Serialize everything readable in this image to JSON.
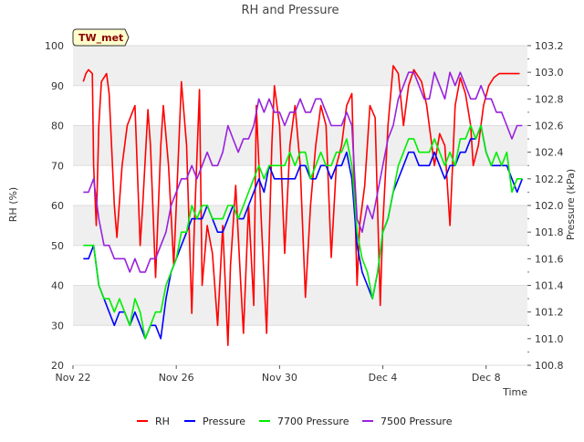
{
  "chart_data": {
    "type": "line",
    "title": "RH and Pressure",
    "xlabel": "Time",
    "ylabel": "RH (%)",
    "y2label": "Pressure (kPa)",
    "badge": "TW_met",
    "ylim": [
      20,
      100
    ],
    "y2lim": [
      100.8,
      103.2
    ],
    "xlim_days": [
      0,
      17.6
    ],
    "x_ticks": [
      "Nov 22",
      "Nov 26",
      "Nov 30",
      "Dec 4",
      "Dec 8"
    ],
    "x_tick_days": [
      0,
      4,
      8,
      12,
      16
    ],
    "y_ticks": [
      20,
      30,
      40,
      50,
      60,
      70,
      80,
      90,
      100
    ],
    "y2_ticks": [
      "100.8",
      "101.0",
      "101.2",
      "101.4",
      "101.6",
      "101.8",
      "102.0",
      "102.2",
      "102.4",
      "102.6",
      "102.8",
      "103.0",
      "103.2"
    ],
    "grid": true,
    "legend_position": "bottom",
    "series": [
      {
        "name": "RH",
        "color": "#ff0000",
        "axis": "left",
        "x": [
          0.4,
          0.5,
          0.6,
          0.75,
          0.8,
          0.9,
          1.0,
          1.1,
          1.3,
          1.4,
          1.6,
          1.7,
          1.9,
          2.1,
          2.4,
          2.6,
          2.7,
          2.9,
          3.0,
          3.2,
          3.4,
          3.5,
          3.7,
          3.9,
          4.0,
          4.2,
          4.4,
          4.6,
          4.7,
          4.9,
          5.0,
          5.2,
          5.4,
          5.6,
          5.8,
          6.0,
          6.1,
          6.3,
          6.5,
          6.6,
          6.8,
          7.0,
          7.1,
          7.3,
          7.5,
          7.7,
          7.8,
          8.0,
          8.2,
          8.4,
          8.6,
          8.8,
          9.0,
          9.2,
          9.4,
          9.6,
          9.8,
          10.0,
          10.2,
          10.4,
          10.6,
          10.8,
          11.0,
          11.1,
          11.3,
          11.5,
          11.7,
          11.9,
          12.0,
          12.2,
          12.4,
          12.6,
          12.8,
          13.0,
          13.2,
          13.5,
          13.7,
          14.0,
          14.2,
          14.4,
          14.6,
          14.8,
          15.0,
          15.2,
          15.4,
          15.5,
          15.7,
          15.9,
          16.1,
          16.3,
          16.5,
          16.7,
          16.9,
          17.1,
          17.3
        ],
        "y": [
          91,
          93,
          94,
          93,
          70,
          55,
          80,
          91,
          93,
          88,
          60,
          52,
          70,
          80,
          85,
          50,
          60,
          84,
          75,
          42,
          75,
          85,
          70,
          45,
          60,
          91,
          75,
          33,
          55,
          89,
          40,
          55,
          48,
          30,
          55,
          25,
          45,
          65,
          40,
          28,
          60,
          35,
          85,
          55,
          28,
          75,
          90,
          80,
          48,
          75,
          85,
          70,
          37,
          60,
          75,
          85,
          80,
          47,
          70,
          75,
          85,
          88,
          40,
          55,
          65,
          85,
          82,
          35,
          55,
          80,
          95,
          93,
          80,
          90,
          94,
          91,
          85,
          70,
          78,
          75,
          55,
          85,
          92,
          88,
          80,
          70,
          75,
          85,
          90,
          92,
          93,
          93,
          93,
          93,
          93
        ]
      },
      {
        "name": "Pressure",
        "color": "#0000ff",
        "axis": "right",
        "x": [
          0.4,
          0.6,
          0.8,
          1.0,
          1.2,
          1.4,
          1.6,
          1.8,
          2.0,
          2.2,
          2.4,
          2.6,
          2.8,
          3.0,
          3.2,
          3.4,
          3.6,
          3.8,
          4.0,
          4.2,
          4.4,
          4.6,
          4.8,
          5.0,
          5.2,
          5.4,
          5.6,
          5.8,
          6.0,
          6.2,
          6.4,
          6.6,
          6.8,
          7.0,
          7.2,
          7.4,
          7.6,
          7.8,
          8.0,
          8.2,
          8.4,
          8.6,
          8.8,
          9.0,
          9.2,
          9.4,
          9.6,
          9.8,
          10.0,
          10.2,
          10.4,
          10.6,
          10.8,
          11.0,
          11.2,
          11.4,
          11.6,
          11.8,
          12.0,
          12.2,
          12.4,
          12.6,
          12.8,
          13.0,
          13.2,
          13.4,
          13.6,
          13.8,
          14.0,
          14.2,
          14.4,
          14.6,
          14.8,
          15.0,
          15.2,
          15.4,
          15.6,
          15.8,
          16.0,
          16.2,
          16.4,
          16.6,
          16.8,
          17.0,
          17.2,
          17.4
        ],
        "y": [
          101.6,
          101.6,
          101.7,
          101.4,
          101.3,
          101.2,
          101.1,
          101.2,
          101.2,
          101.1,
          101.2,
          101.1,
          101.0,
          101.1,
          101.1,
          101.0,
          101.3,
          101.5,
          101.6,
          101.7,
          101.8,
          101.9,
          101.9,
          101.9,
          102.0,
          101.9,
          101.8,
          101.8,
          101.9,
          102.0,
          101.9,
          101.9,
          102.0,
          102.1,
          102.2,
          102.1,
          102.3,
          102.2,
          102.2,
          102.2,
          102.2,
          102.2,
          102.3,
          102.3,
          102.2,
          102.2,
          102.3,
          102.3,
          102.2,
          102.3,
          102.3,
          102.4,
          102.2,
          101.7,
          101.5,
          101.4,
          101.3,
          101.5,
          101.8,
          101.9,
          102.1,
          102.2,
          102.3,
          102.4,
          102.4,
          102.3,
          102.3,
          102.3,
          102.4,
          102.3,
          102.2,
          102.3,
          102.3,
          102.4,
          102.4,
          102.5,
          102.5,
          102.6,
          102.4,
          102.3,
          102.3,
          102.3,
          102.3,
          102.2,
          102.1,
          102.2
        ]
      },
      {
        "name": "7700 Pressure",
        "color": "#00ee00",
        "axis": "right",
        "x": [
          0.4,
          0.6,
          0.8,
          1.0,
          1.2,
          1.4,
          1.6,
          1.8,
          2.0,
          2.2,
          2.4,
          2.6,
          2.8,
          3.0,
          3.2,
          3.4,
          3.6,
          3.8,
          4.0,
          4.2,
          4.4,
          4.6,
          4.8,
          5.0,
          5.2,
          5.4,
          5.6,
          5.8,
          6.0,
          6.2,
          6.4,
          6.6,
          6.8,
          7.0,
          7.2,
          7.4,
          7.6,
          7.8,
          8.0,
          8.2,
          8.4,
          8.6,
          8.8,
          9.0,
          9.2,
          9.4,
          9.6,
          9.8,
          10.0,
          10.2,
          10.4,
          10.6,
          10.8,
          11.0,
          11.2,
          11.4,
          11.6,
          11.8,
          12.0,
          12.2,
          12.4,
          12.6,
          12.8,
          13.0,
          13.2,
          13.4,
          13.6,
          13.8,
          14.0,
          14.2,
          14.4,
          14.6,
          14.8,
          15.0,
          15.2,
          15.4,
          15.6,
          15.8,
          16.0,
          16.2,
          16.4,
          16.6,
          16.8,
          17.0,
          17.2,
          17.4
        ],
        "y": [
          101.7,
          101.7,
          101.7,
          101.4,
          101.3,
          101.3,
          101.2,
          101.3,
          101.2,
          101.1,
          101.3,
          101.2,
          101.0,
          101.1,
          101.2,
          101.2,
          101.4,
          101.5,
          101.6,
          101.8,
          101.8,
          102.0,
          101.9,
          102.0,
          102.0,
          101.9,
          101.9,
          101.9,
          102.0,
          102.0,
          101.9,
          102.0,
          102.1,
          102.2,
          102.3,
          102.2,
          102.3,
          102.3,
          102.3,
          102.3,
          102.4,
          102.3,
          102.4,
          102.4,
          102.2,
          102.3,
          102.4,
          102.3,
          102.3,
          102.4,
          102.4,
          102.5,
          102.3,
          101.8,
          101.6,
          101.5,
          101.3,
          101.5,
          101.8,
          101.9,
          102.1,
          102.3,
          102.4,
          102.5,
          102.5,
          102.4,
          102.4,
          102.4,
          102.5,
          102.4,
          102.3,
          102.4,
          102.3,
          102.5,
          102.5,
          102.6,
          102.5,
          102.6,
          102.4,
          102.3,
          102.4,
          102.3,
          102.4,
          102.1,
          102.2,
          102.2
        ]
      },
      {
        "name": "7500 Pressure",
        "color": "#9922dd",
        "axis": "right",
        "x": [
          0.4,
          0.6,
          0.8,
          1.0,
          1.2,
          1.4,
          1.6,
          1.8,
          2.0,
          2.2,
          2.4,
          2.6,
          2.8,
          3.0,
          3.2,
          3.4,
          3.6,
          3.8,
          4.0,
          4.2,
          4.4,
          4.6,
          4.8,
          5.0,
          5.2,
          5.4,
          5.6,
          5.8,
          6.0,
          6.2,
          6.4,
          6.6,
          6.8,
          7.0,
          7.2,
          7.4,
          7.6,
          7.8,
          8.0,
          8.2,
          8.4,
          8.6,
          8.8,
          9.0,
          9.2,
          9.4,
          9.6,
          9.8,
          10.0,
          10.2,
          10.4,
          10.6,
          10.8,
          11.0,
          11.2,
          11.4,
          11.6,
          11.8,
          12.0,
          12.2,
          12.4,
          12.6,
          12.8,
          13.0,
          13.2,
          13.4,
          13.6,
          13.8,
          14.0,
          14.2,
          14.4,
          14.6,
          14.8,
          15.0,
          15.2,
          15.4,
          15.6,
          15.8,
          16.0,
          16.2,
          16.4,
          16.6,
          16.8,
          17.0,
          17.2,
          17.4
        ],
        "y": [
          102.1,
          102.1,
          102.2,
          101.9,
          101.7,
          101.7,
          101.6,
          101.6,
          101.6,
          101.5,
          101.6,
          101.5,
          101.5,
          101.6,
          101.6,
          101.7,
          101.8,
          102.0,
          102.1,
          102.2,
          102.2,
          102.3,
          102.2,
          102.3,
          102.4,
          102.3,
          102.3,
          102.4,
          102.6,
          102.5,
          102.4,
          102.5,
          102.5,
          102.6,
          102.8,
          102.7,
          102.8,
          102.7,
          102.7,
          102.6,
          102.7,
          102.7,
          102.8,
          102.7,
          102.7,
          102.8,
          102.8,
          102.7,
          102.6,
          102.6,
          102.6,
          102.7,
          102.6,
          101.9,
          101.8,
          102.0,
          101.9,
          102.1,
          102.3,
          102.5,
          102.6,
          102.8,
          102.9,
          103.0,
          103.0,
          102.9,
          102.8,
          102.8,
          103.0,
          102.9,
          102.8,
          103.0,
          102.9,
          103.0,
          102.9,
          102.8,
          102.8,
          102.9,
          102.8,
          102.8,
          102.7,
          102.7,
          102.6,
          102.5,
          102.6,
          102.6
        ]
      }
    ]
  }
}
